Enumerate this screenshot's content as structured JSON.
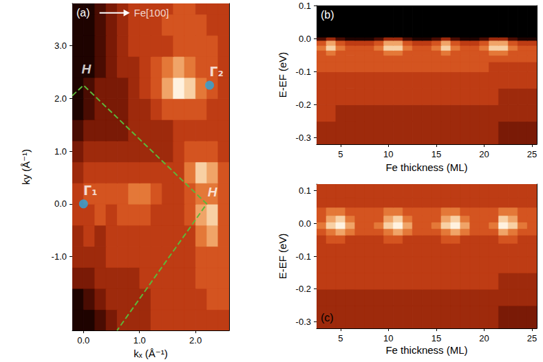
{
  "chart_data": [
    {
      "type": "heatmap",
      "panel_label": "(a)",
      "xlabel": "kₓ (Å⁻¹)",
      "ylabel": "ky (Å⁻¹)",
      "xlim": [
        -0.2,
        2.6
      ],
      "ylim": [
        -2.4,
        3.8
      ],
      "xticks": [
        {
          "value": 0,
          "label": "0.0"
        },
        {
          "value": 1,
          "label": "1.0"
        },
        {
          "value": 2,
          "label": "2.0"
        }
      ],
      "yticks": [
        {
          "value": -1,
          "label": "-1.0"
        },
        {
          "value": 0,
          "label": "0.0"
        },
        {
          "value": 1,
          "label": "1.0"
        },
        {
          "value": 2,
          "label": "2.0"
        },
        {
          "value": 3,
          "label": "3.0"
        }
      ],
      "grid": false,
      "intensity_range": [
        0,
        10
      ],
      "x_bins": [
        -0.2,
        0,
        0.2,
        0.4,
        0.6,
        0.8,
        1.0,
        1.2,
        1.4,
        1.6,
        1.8,
        2.0,
        2.2,
        2.4,
        2.6
      ],
      "y_bins": [
        -2.4,
        -2.0,
        -1.6,
        -1.2,
        -0.8,
        -0.4,
        0,
        0.4,
        0.8,
        1.2,
        1.6,
        2.0,
        2.4,
        2.8,
        3.2,
        3.6,
        3.8
      ],
      "intensity": [
        [
          1,
          1,
          2,
          3,
          4,
          4,
          4,
          5,
          5,
          5,
          5,
          5,
          5,
          5
        ],
        [
          1,
          2,
          3,
          4,
          4,
          4,
          4,
          5,
          5,
          5,
          5,
          5,
          6,
          6
        ],
        [
          3,
          3,
          4,
          4,
          4,
          4,
          5,
          5,
          5,
          5,
          5,
          6,
          6,
          6
        ],
        [
          4,
          4,
          4,
          5,
          5,
          5,
          5,
          5,
          5,
          5,
          5,
          6,
          6,
          6
        ],
        [
          4,
          5,
          4,
          5,
          5,
          5,
          5,
          5,
          5,
          5,
          5,
          7,
          8,
          6
        ],
        [
          5,
          5,
          6,
          5,
          6,
          6,
          6,
          5,
          5,
          5,
          6,
          8,
          9,
          6
        ],
        [
          5,
          6,
          6,
          6,
          6,
          7,
          7,
          6,
          5,
          5,
          6,
          7,
          7,
          6
        ],
        [
          4,
          5,
          5,
          5,
          5,
          5,
          5,
          5,
          5,
          5,
          7,
          9,
          8,
          6
        ],
        [
          3,
          4,
          4,
          4,
          4,
          4,
          4,
          4,
          4,
          5,
          6,
          6,
          6,
          5
        ],
        [
          2,
          3,
          3,
          3,
          3,
          4,
          4,
          4,
          4,
          5,
          5,
          5,
          5,
          5
        ],
        [
          1,
          2,
          3,
          3,
          3,
          4,
          4,
          5,
          6,
          6,
          6,
          6,
          5,
          5
        ],
        [
          1,
          2,
          3,
          3,
          3,
          4,
          5,
          6,
          8,
          10,
          9,
          7,
          6,
          5
        ],
        [
          1,
          1,
          2,
          3,
          4,
          4,
          5,
          6,
          7,
          8,
          7,
          6,
          6,
          5
        ],
        [
          1,
          1,
          2,
          3,
          4,
          5,
          5,
          5,
          5,
          6,
          6,
          6,
          6,
          5
        ],
        [
          1,
          1,
          2,
          3,
          4,
          5,
          5,
          5,
          6,
          6,
          6,
          6,
          5,
          5
        ],
        [
          1,
          1,
          2,
          3,
          4,
          5,
          5,
          5,
          5,
          6,
          6,
          5,
          5,
          5
        ]
      ],
      "boundary": {
        "x": [
          -0.2,
          0,
          2.2,
          0.6
        ],
        "y": [
          2.05,
          2.25,
          0,
          -2.4
        ],
        "color": "#5cb83a",
        "line_style": "dashed"
      },
      "markers": {
        "color": "#29a8e0",
        "labels": [
          "Γ₁",
          "Γ₂"
        ],
        "x": [
          0,
          2.25
        ],
        "y": [
          0,
          2.25
        ]
      },
      "annotations": [
        {
          "text": "H",
          "x": 0.05,
          "y": 2.55
        },
        {
          "text": "H",
          "x": 2.3,
          "y": 0.22
        }
      ],
      "direction_label": {
        "text": "Fe[100]",
        "x": 0.9,
        "y": 3.62
      }
    },
    {
      "type": "heatmap",
      "panel_label": "(b)",
      "xlabel": "Fe thickness (ML)",
      "ylabel": "E-EF (eV)",
      "xlim": [
        2.5,
        25.5
      ],
      "ylim": [
        -0.32,
        0.1
      ],
      "xticks": [
        5,
        10,
        15,
        20,
        25
      ],
      "yticks": [
        -0.3,
        -0.2,
        -0.1,
        {
          "value": 0,
          "label": "0.0"
        },
        0.1
      ],
      "grid": false,
      "intensity_range": [
        0,
        10
      ],
      "x_bins": [
        2.5,
        3.5,
        4.5,
        5.5,
        6.5,
        7.5,
        8.5,
        9.5,
        10.5,
        11.5,
        12.5,
        13.5,
        14.5,
        15.5,
        16.5,
        17.5,
        18.5,
        19.5,
        20.5,
        21.5,
        22.5,
        23.5,
        24.5,
        25.5
      ],
      "y_bins": [
        -0.32,
        -0.25,
        -0.2,
        -0.15,
        -0.1,
        -0.07,
        -0.05,
        -0.035,
        -0.02,
        -0.005,
        0.005,
        0.1
      ],
      "intensity": [
        [
          4,
          4,
          4,
          4,
          4,
          4,
          4,
          4,
          4,
          4,
          4,
          4,
          4,
          4,
          4,
          4,
          4,
          4,
          4,
          3,
          3,
          3,
          3
        ],
        [
          5,
          5,
          4,
          4,
          4,
          4,
          4,
          4,
          4,
          4,
          4,
          4,
          4,
          4,
          4,
          4,
          4,
          4,
          4,
          4,
          4,
          4,
          4
        ],
        [
          5,
          5,
          5,
          5,
          5,
          5,
          5,
          5,
          5,
          5,
          5,
          5,
          5,
          5,
          5,
          5,
          5,
          5,
          5,
          4,
          4,
          4,
          4
        ],
        [
          5,
          5,
          5,
          5,
          5,
          5,
          5,
          5,
          5,
          5,
          5,
          5,
          5,
          5,
          5,
          5,
          5,
          5,
          5,
          5,
          5,
          5,
          5
        ],
        [
          6,
          6,
          6,
          6,
          6,
          6,
          6,
          6,
          6,
          6,
          6,
          6,
          6,
          6,
          6,
          6,
          6,
          6,
          5,
          5,
          5,
          5,
          5
        ],
        [
          6,
          6,
          6,
          6,
          6,
          6,
          6,
          6,
          6,
          6,
          6,
          6,
          6,
          6,
          6,
          6,
          6,
          6,
          6,
          6,
          6,
          6,
          6
        ],
        [
          6,
          7,
          6,
          6,
          6,
          6,
          6,
          7,
          7,
          6,
          6,
          6,
          6,
          7,
          6,
          6,
          6,
          6,
          7,
          7,
          6,
          6,
          6
        ],
        [
          7,
          9,
          7,
          6,
          6,
          6,
          7,
          9,
          9,
          7,
          6,
          6,
          7,
          9,
          7,
          6,
          6,
          7,
          9,
          9,
          7,
          6,
          6
        ],
        [
          6,
          8,
          6,
          5,
          5,
          5,
          6,
          8,
          8,
          6,
          5,
          5,
          6,
          8,
          6,
          5,
          5,
          6,
          8,
          8,
          6,
          5,
          5
        ],
        [
          2,
          4,
          2,
          1,
          1,
          1,
          2,
          4,
          4,
          2,
          1,
          1,
          2,
          4,
          2,
          1,
          1,
          2,
          4,
          4,
          2,
          1,
          1
        ],
        [
          0,
          0,
          0,
          0,
          0,
          0,
          0,
          0,
          0,
          0,
          0,
          0,
          0,
          0,
          0,
          0,
          0,
          0,
          0,
          0,
          0,
          0,
          0
        ]
      ]
    },
    {
      "type": "heatmap",
      "panel_label": "(c)",
      "xlabel": "Fe thickness (ML)",
      "ylabel": "E-EF (eV)",
      "xlim": [
        2.5,
        25.5
      ],
      "ylim": [
        -0.32,
        0.12
      ],
      "xticks": [
        5,
        10,
        15,
        20,
        25
      ],
      "yticks": [
        -0.3,
        -0.2,
        -0.1,
        {
          "value": 0,
          "label": "0.0"
        },
        0.1
      ],
      "grid": false,
      "intensity_range": [
        0,
        10
      ],
      "x_bins": [
        2.5,
        3.5,
        4.5,
        5.5,
        6.5,
        7.5,
        8.5,
        9.5,
        10.5,
        11.5,
        12.5,
        13.5,
        14.5,
        15.5,
        16.5,
        17.5,
        18.5,
        19.5,
        20.5,
        21.5,
        22.5,
        23.5,
        24.5,
        25.5
      ],
      "y_bins": [
        -0.32,
        -0.25,
        -0.2,
        -0.15,
        -0.1,
        -0.06,
        -0.035,
        -0.015,
        0.005,
        0.025,
        0.05,
        0.08,
        0.12
      ],
      "intensity": [
        [
          4,
          4,
          4,
          4,
          4,
          4,
          4,
          4,
          4,
          4,
          4,
          4,
          4,
          4,
          4,
          4,
          4,
          4,
          4,
          3,
          3,
          3,
          3
        ],
        [
          4,
          4,
          4,
          4,
          4,
          4,
          4,
          4,
          4,
          4,
          4,
          4,
          4,
          4,
          4,
          4,
          4,
          4,
          4,
          4,
          4,
          4,
          4
        ],
        [
          5,
          5,
          5,
          5,
          5,
          5,
          5,
          5,
          5,
          5,
          5,
          5,
          5,
          5,
          5,
          5,
          5,
          5,
          5,
          4,
          4,
          4,
          4
        ],
        [
          5,
          5,
          5,
          5,
          5,
          5,
          5,
          5,
          5,
          5,
          5,
          5,
          5,
          5,
          5,
          5,
          5,
          5,
          5,
          5,
          5,
          5,
          5
        ],
        [
          5,
          5,
          5,
          5,
          5,
          5,
          5,
          5,
          5,
          5,
          5,
          5,
          5,
          5,
          5,
          5,
          5,
          5,
          5,
          5,
          5,
          5,
          5
        ],
        [
          5,
          6,
          6,
          5,
          5,
          5,
          5,
          6,
          6,
          5,
          5,
          5,
          5,
          6,
          6,
          5,
          5,
          5,
          5,
          6,
          6,
          5,
          5
        ],
        [
          6,
          7,
          8,
          7,
          6,
          6,
          6,
          7,
          8,
          7,
          6,
          6,
          6,
          7,
          8,
          7,
          6,
          6,
          6,
          8,
          7,
          6,
          6
        ],
        [
          7,
          9,
          10,
          8,
          6,
          6,
          7,
          9,
          10,
          8,
          6,
          6,
          7,
          9,
          10,
          8,
          6,
          6,
          7,
          10,
          9,
          7,
          6
        ],
        [
          6,
          8,
          9,
          7,
          6,
          6,
          6,
          8,
          9,
          7,
          6,
          6,
          6,
          8,
          9,
          7,
          6,
          6,
          6,
          9,
          8,
          6,
          6
        ],
        [
          6,
          7,
          7,
          6,
          6,
          6,
          6,
          7,
          7,
          6,
          6,
          6,
          6,
          7,
          7,
          6,
          6,
          6,
          6,
          7,
          7,
          6,
          6
        ],
        [
          5,
          5,
          5,
          5,
          5,
          5,
          5,
          5,
          5,
          5,
          5,
          5,
          5,
          5,
          5,
          5,
          5,
          5,
          5,
          5,
          5,
          5,
          5
        ],
        [
          5,
          5,
          5,
          5,
          5,
          5,
          5,
          5,
          5,
          5,
          5,
          5,
          5,
          5,
          5,
          5,
          5,
          5,
          5,
          5,
          5,
          5,
          5
        ]
      ]
    }
  ]
}
